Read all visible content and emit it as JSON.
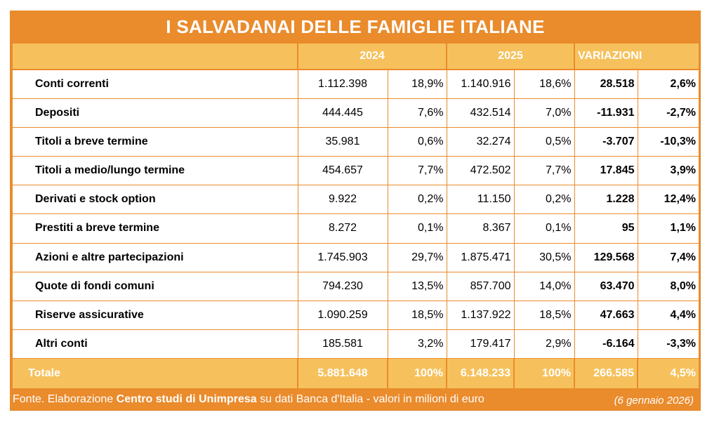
{
  "title": "I SALVADANAI DELLE FAMIGLIE ITALIANE",
  "header": {
    "y2024": "2024",
    "y2025": "2025",
    "variazioni": "VARIAZIONI"
  },
  "rows": [
    {
      "label": "Conti correnti",
      "v2024": "1.112.398",
      "p2024": "18,9%",
      "v2025": "1.140.916",
      "p2025": "18,6%",
      "dv": "28.518",
      "dp": "2,6%"
    },
    {
      "label": "Depositi",
      "v2024": "444.445",
      "p2024": "7,6%",
      "v2025": "432.514",
      "p2025": "7,0%",
      "dv": "-11.931",
      "dp": "-2,7%"
    },
    {
      "label": "Titoli a breve termine",
      "v2024": "35.981",
      "p2024": "0,6%",
      "v2025": "32.274",
      "p2025": "0,5%",
      "dv": "-3.707",
      "dp": "-10,3%"
    },
    {
      "label": "Titoli a medio/lungo termine",
      "v2024": "454.657",
      "p2024": "7,7%",
      "v2025": "472.502",
      "p2025": "7,7%",
      "dv": "17.845",
      "dp": "3,9%"
    },
    {
      "label": "Derivati e stock option",
      "v2024": "9.922",
      "p2024": "0,2%",
      "v2025": "11.150",
      "p2025": "0,2%",
      "dv": "1.228",
      "dp": "12,4%"
    },
    {
      "label": "Prestiti a breve termine",
      "v2024": "8.272",
      "p2024": "0,1%",
      "v2025": "8.367",
      "p2025": "0,1%",
      "dv": "95",
      "dp": "1,1%"
    },
    {
      "label": "Azioni e altre partecipazioni",
      "v2024": "1.745.903",
      "p2024": "29,7%",
      "v2025": "1.875.471",
      "p2025": "30,5%",
      "dv": "129.568",
      "dp": "7,4%"
    },
    {
      "label": "Quote di fondi comuni",
      "v2024": "794.230",
      "p2024": "13,5%",
      "v2025": "857.700",
      "p2025": "14,0%",
      "dv": "63.470",
      "dp": "8,0%"
    },
    {
      "label": "Riserve assicurative",
      "v2024": "1.090.259",
      "p2024": "18,5%",
      "v2025": "1.137.922",
      "p2025": "18,5%",
      "dv": "47.663",
      "dp": "4,4%"
    },
    {
      "label": "Altri conti",
      "v2024": "185.581",
      "p2024": "3,2%",
      "v2025": "179.417",
      "p2025": "2,9%",
      "dv": "-6.164",
      "dp": "-3,3%"
    }
  ],
  "total": {
    "label": "Totale",
    "v2024": "5.881.648",
    "p2024": "100%",
    "v2025": "6.148.233",
    "p2025": "100%",
    "dv": "266.585",
    "dp": "4,5%"
  },
  "footer": {
    "prefix": "Fonte. Elaborazione ",
    "org": "Centro studi di Unimpresa",
    "suffix": " su dati Banca d'Italia - valori in milioni di euro",
    "date": "(6 gennaio 2026)"
  },
  "colors": {
    "frame": "#ea8b2c",
    "header_fill": "#f6c15c",
    "text_on_orange": "#ffffff"
  }
}
